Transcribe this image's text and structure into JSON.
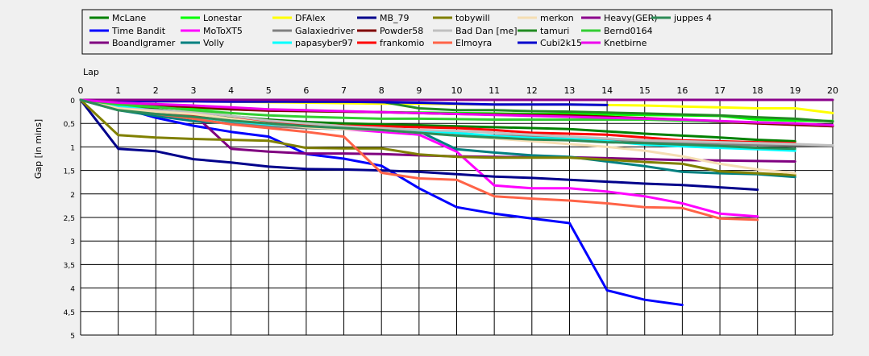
{
  "chart_data": {
    "type": "line",
    "xlabel": "Lap",
    "ylabel": "Gap [in mins]",
    "xlim": [
      0,
      20
    ],
    "ylim": [
      0,
      5
    ],
    "x_ticks": [
      "0",
      "1",
      "2",
      "3",
      "4",
      "5",
      "6",
      "7",
      "8",
      "9",
      "10",
      "11",
      "12",
      "13",
      "14",
      "15",
      "16",
      "17",
      "18",
      "19",
      "20"
    ],
    "y_ticks": [
      {
        "value": 0,
        "label": "0"
      },
      {
        "value": 0.5,
        "label": "0,5"
      },
      {
        "value": 1,
        "label": "1"
      },
      {
        "value": 1.5,
        "label": "1,5"
      },
      {
        "value": 2,
        "label": "2"
      },
      {
        "value": 2.5,
        "label": "2,5"
      },
      {
        "value": 3,
        "label": "3"
      },
      {
        "value": 3.5,
        "label": "3,5"
      },
      {
        "value": 4,
        "label": "4"
      },
      {
        "value": 4.5,
        "label": "4,5"
      },
      {
        "value": 5,
        "label": "5"
      }
    ],
    "grid": true,
    "legend_placement": "top",
    "series": [
      {
        "name": "McLane",
        "color": "#008000",
        "values": [
          0,
          0.12,
          0.2,
          0.28,
          0.35,
          0.42,
          0.47,
          0.5,
          0.52,
          0.54,
          0.56,
          0.58,
          0.6,
          0.62,
          0.67,
          0.72,
          0.76,
          0.8,
          0.85,
          0.88
        ]
      },
      {
        "name": "Time Bandit",
        "color": "#0000ff",
        "values": [
          0,
          0.15,
          0.38,
          0.55,
          0.68,
          0.78,
          1.15,
          1.25,
          1.4,
          1.88,
          2.28,
          2.42,
          2.52,
          2.62,
          4.05,
          4.25,
          4.36
        ]
      },
      {
        "name": "Boandlgramer",
        "color": "#800080",
        "values": [
          0,
          0.15,
          0.22,
          0.3,
          1.04,
          1.1,
          1.14,
          1.14,
          1.15,
          1.18,
          1.2,
          1.21,
          1.22,
          1.22,
          1.24,
          1.26,
          1.28,
          1.29,
          1.3,
          1.31
        ]
      },
      {
        "name": "Lonestar",
        "color": "#00ff00",
        "values": [
          0,
          0.12,
          0.15,
          0.18,
          0.2,
          0.22,
          0.24,
          0.25,
          0.26,
          0.27,
          0.28,
          0.29,
          0.3,
          0.3,
          0.31,
          0.32,
          0.33,
          0.34,
          0.42,
          0.44,
          0.45
        ]
      },
      {
        "name": "MoToXT5",
        "color": "#ff00ff",
        "values": [
          0,
          0.15,
          0.25,
          0.35,
          0.45,
          0.52,
          0.58,
          0.62,
          0.68,
          0.74,
          1.1,
          1.82,
          1.88,
          1.88,
          1.95,
          2.05,
          2.2,
          2.42,
          2.48
        ]
      },
      {
        "name": "Volly",
        "color": "#008080",
        "values": [
          0,
          0.22,
          0.34,
          0.45,
          0.5,
          0.55,
          0.6,
          0.62,
          0.63,
          0.67,
          1.05,
          1.12,
          1.18,
          1.21,
          1.31,
          1.41,
          1.53,
          1.56,
          1.58,
          1.64
        ]
      },
      {
        "name": "DFAlex",
        "color": "#ffff00",
        "values": [
          0,
          0.02,
          0.03,
          0.03,
          0.04,
          0.05,
          0.06,
          0.07,
          0.08,
          0.08,
          0.09,
          0.1,
          0.1,
          0.1,
          0.11,
          0.12,
          0.14,
          0.16,
          0.18,
          0.18,
          0.28
        ]
      },
      {
        "name": "Galaxiedriver",
        "color": "#808080",
        "values": [
          0,
          0.2,
          0.3,
          0.36,
          0.46,
          0.56,
          0.6,
          0.62,
          0.64,
          0.7,
          0.74,
          0.76,
          0.78,
          0.8,
          0.84,
          0.88,
          0.92,
          0.95,
          0.96,
          0.97,
          0.98
        ]
      },
      {
        "name": "papasyber97",
        "color": "#00ffff",
        "values": [
          0,
          0.14,
          0.23,
          0.36,
          0.45,
          0.52,
          0.56,
          0.6,
          0.63,
          0.66,
          0.7,
          0.77,
          0.81,
          0.83,
          0.88,
          0.95,
          0.99,
          1.02,
          1.05,
          1.08
        ]
      },
      {
        "name": "MB_79",
        "color": "#00008b",
        "values": [
          0,
          1.04,
          1.09,
          1.26,
          1.33,
          1.42,
          1.47,
          1.48,
          1.5,
          1.53,
          1.58,
          1.63,
          1.66,
          1.7,
          1.74,
          1.78,
          1.81,
          1.86,
          1.91
        ]
      },
      {
        "name": "Powder58",
        "color": "#800000",
        "values": [
          0,
          0.08,
          0.12,
          0.15,
          0.2,
          0.23,
          0.24,
          0.25,
          0.26,
          0.28,
          0.3,
          0.31,
          0.32,
          0.33,
          0.36,
          0.39,
          0.42,
          0.47,
          0.5,
          0.53,
          0.56
        ]
      },
      {
        "name": "frankomio",
        "color": "#ff0000",
        "values": [
          0,
          0.18,
          0.25,
          0.33,
          0.4,
          0.46,
          0.52,
          0.55,
          0.56,
          0.58,
          0.6,
          0.64,
          0.7,
          0.72,
          0.74,
          0.8,
          0.86,
          0.88,
          0.9,
          0.92
        ]
      },
      {
        "name": "tobywill",
        "color": "#808000",
        "values": [
          0,
          0.75,
          0.8,
          0.83,
          0.85,
          0.87,
          1.02,
          1.03,
          1.03,
          1.16,
          1.21,
          1.23,
          1.23,
          1.23,
          1.27,
          1.32,
          1.36,
          1.52,
          1.56,
          1.6
        ]
      },
      {
        "name": "Bad Dan [me]",
        "color": "#c0c0c0",
        "values": [
          0,
          0.18,
          0.22,
          0.26,
          0.34,
          0.44,
          0.5,
          0.56,
          0.6,
          0.64,
          0.66,
          0.7,
          0.74,
          0.78,
          0.82,
          0.86,
          0.88,
          0.9,
          0.92,
          0.94,
          0.97
        ]
      },
      {
        "name": "Elmoyra",
        "color": "#ff6347",
        "values": [
          0,
          0.2,
          0.3,
          0.4,
          0.52,
          0.6,
          0.68,
          0.78,
          1.55,
          1.67,
          1.7,
          2.05,
          2.1,
          2.14,
          2.2,
          2.28,
          2.3,
          2.52,
          2.55
        ]
      },
      {
        "name": "merkon",
        "color": "#f5deb3",
        "values": [
          0,
          0.18,
          0.25,
          0.3,
          0.4,
          0.5,
          0.58,
          0.62,
          0.64,
          0.7,
          0.76,
          0.82,
          0.88,
          0.94,
          1.0,
          1.08,
          1.2,
          1.36,
          1.48,
          1.56
        ]
      },
      {
        "name": "tamuri",
        "color": "#228b22",
        "values": [
          0,
          0.02,
          0.02,
          0.02,
          0.03,
          0.03,
          0.04,
          0.04,
          0.04,
          0.18,
          0.22,
          0.22,
          0.24,
          0.25,
          0.27,
          0.29,
          0.31,
          0.33,
          0.37,
          0.4,
          0.46
        ]
      },
      {
        "name": "Cubi2k15",
        "color": "#0000cd",
        "values": [
          0,
          0.02,
          0.03,
          0.03,
          0.04,
          0.04,
          0.04,
          0.04,
          0.05,
          0.06,
          0.08,
          0.1,
          0.1,
          0.1,
          0.11
        ]
      },
      {
        "name": "Heavy(GER)",
        "color": "#8b008b",
        "values": [
          0,
          0.0,
          0.0,
          0.0,
          0.0,
          0.0,
          0.0,
          0.0,
          0.0,
          0.0,
          0.0,
          0.0,
          0.0,
          0.0,
          0.0,
          0.0,
          0.0,
          0.0,
          0.0,
          0.0,
          0.0
        ]
      },
      {
        "name": "Bernd0164",
        "color": "#32cd32",
        "values": [
          0,
          0.1,
          0.15,
          0.22,
          0.28,
          0.33,
          0.36,
          0.38,
          0.4,
          0.4,
          0.41,
          0.42,
          0.42,
          0.42,
          0.42,
          0.42,
          0.44,
          0.46,
          0.48,
          0.5
        ]
      },
      {
        "name": "Knetbirne",
        "color": "#ee00ee",
        "values": [
          0,
          0.06,
          0.09,
          0.12,
          0.16,
          0.2,
          0.22,
          0.24,
          0.26,
          0.28,
          0.3,
          0.32,
          0.34,
          0.36,
          0.38,
          0.4,
          0.42,
          0.45,
          0.48,
          0.5,
          0.54
        ]
      },
      {
        "name": "juppes 4",
        "color": "#2e8b57",
        "values": [
          0,
          0.22,
          0.3,
          0.36,
          0.44,
          0.5,
          0.56,
          0.6,
          0.64,
          0.7,
          0.76,
          0.8,
          0.84,
          0.86,
          0.9,
          0.92,
          0.95,
          0.98,
          1.02,
          1.04
        ]
      }
    ]
  },
  "colors": {
    "background": "#f0f0f0",
    "plot_background": "#ffffff",
    "grid": "#000000"
  }
}
